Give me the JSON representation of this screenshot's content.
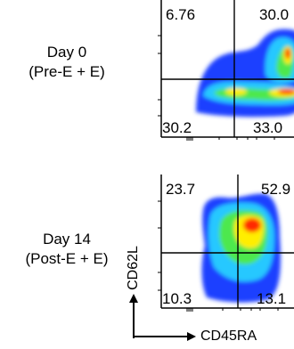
{
  "chart_data": [
    {
      "type": "density-contour",
      "sample_label": [
        "Day 0",
        "(Pre-E + E)"
      ],
      "xlabel": "",
      "ylabel": "",
      "quadrants": [
        {
          "position": "upper-left",
          "percent": "6.76"
        },
        {
          "position": "upper-right",
          "percent": "30.0"
        },
        {
          "position": "lower-left",
          "percent": "30.2"
        },
        {
          "position": "lower-right",
          "percent": "33.0"
        }
      ]
    },
    {
      "type": "density-contour",
      "sample_label": [
        "Day 14",
        "(Post-E + E)"
      ],
      "xlabel": "CD45RA",
      "ylabel": "CD62L",
      "quadrants": [
        {
          "position": "upper-left",
          "percent": "23.7"
        },
        {
          "position": "upper-right",
          "percent": "52.9"
        },
        {
          "position": "lower-left",
          "percent": "10.3"
        },
        {
          "position": "lower-right",
          "percent": "13.1"
        }
      ]
    }
  ],
  "colors": {
    "density_low": "#1f3fff",
    "density_mid_low": "#25c8ff",
    "density_mid": "#4de84d",
    "density_mid_high": "#ffee00",
    "density_high": "#ff2a00"
  }
}
